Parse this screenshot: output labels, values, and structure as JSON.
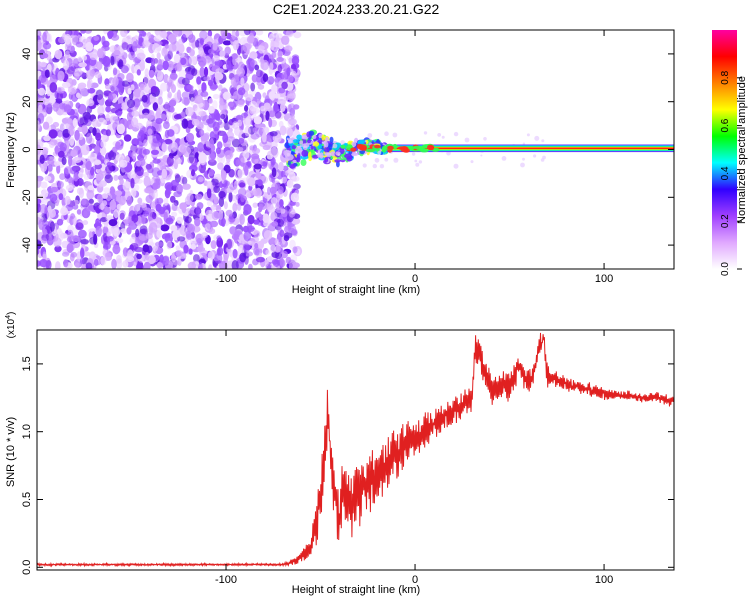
{
  "figure": {
    "title": "C2E1.2024.233.20.21.G22"
  },
  "chart_data": [
    {
      "type": "heatmap",
      "xlabel": "Height of straight line (km)",
      "ylabel": "Frequency (Hz)",
      "xlim": [
        -200,
        137
      ],
      "ylim": [
        -50,
        50
      ],
      "x_ticks": [
        -100,
        0,
        100
      ],
      "x_tick_labels": [
        "-100",
        "0",
        "100"
      ],
      "y_ticks": [
        -40,
        -20,
        0,
        20,
        40
      ],
      "y_tick_labels": [
        "-40",
        "-20",
        "0",
        "20",
        "40"
      ],
      "colorbar": {
        "label": "Normalized spectral amplitude",
        "range": [
          0,
          1
        ],
        "ticks": [
          0,
          0.2,
          0.4,
          0.6,
          0.8
        ],
        "tick_labels": [
          "0.0",
          "0.2",
          "0.4",
          "0.6",
          "0.8"
        ],
        "colors": [
          "#ffffff",
          "#e0a8ff",
          "#a040ff",
          "#3000ff",
          "#00ffff",
          "#00ff00",
          "#ffff00",
          "#ff8000",
          "#ff0000",
          "#ff00a0"
        ]
      },
      "regions": [
        {
          "x_range": [
            -200,
            -68
          ],
          "freq_range": [
            -50,
            50
          ],
          "amplitude": "low (0.0-0.2)",
          "description": "scattered noise"
        },
        {
          "x_range": [
            -68,
            -15
          ],
          "freq_center": 0,
          "freq_spread_hz": 8,
          "amplitude": "0.3-0.8"
        },
        {
          "x_range": [
            -15,
            137
          ],
          "freq_center": 0.5,
          "freq_spread_hz": 1.5,
          "amplitude": "0.8-1.0"
        }
      ],
      "grid": false
    },
    {
      "type": "line",
      "xlabel": "Height of straight line (km)",
      "ylabel": "SNR (10 * v/v)",
      "y_multiplier": "(x10",
      "y_multiplier_exp": "4",
      "y_multiplier_close": ")",
      "xlim": [
        -200,
        137
      ],
      "ylim": [
        -0.02,
        1.75
      ],
      "x_ticks": [
        -100,
        0,
        100
      ],
      "x_tick_labels": [
        "-100",
        "0",
        "100"
      ],
      "y_ticks": [
        0,
        0.5,
        1.0,
        1.5
      ],
      "y_tick_labels": [
        "0.0",
        "0.5",
        "1.0",
        "1.5"
      ],
      "series": [
        {
          "color": "#e02020",
          "x": [
            -200,
            -150,
            -100,
            -70,
            -62,
            -55,
            -50,
            -48,
            -46,
            -44,
            -42,
            -40,
            -38,
            -35,
            -30,
            -25,
            -20,
            -15,
            -10,
            -5,
            0,
            5,
            10,
            15,
            20,
            25,
            30,
            32,
            40,
            50,
            55,
            60,
            68,
            70,
            80,
            90,
            100,
            110,
            120,
            130,
            137
          ],
          "y": [
            0.02,
            0.02,
            0.02,
            0.02,
            0.05,
            0.15,
            0.5,
            0.85,
            1.18,
            0.7,
            0.45,
            0.35,
            0.6,
            0.45,
            0.55,
            0.6,
            0.7,
            0.8,
            0.85,
            0.9,
            0.95,
            1.0,
            1.05,
            1.1,
            1.15,
            1.2,
            1.25,
            1.65,
            1.3,
            1.35,
            1.5,
            1.35,
            1.7,
            1.4,
            1.35,
            1.32,
            1.28,
            1.27,
            1.25,
            1.25,
            1.22
          ],
          "noise": [
            0.01,
            0.01,
            0.01,
            0.01,
            0.04,
            0.12,
            0.3,
            0.3,
            0.25,
            0.3,
            0.3,
            0.28,
            0.28,
            0.28,
            0.28,
            0.28,
            0.28,
            0.26,
            0.25,
            0.23,
            0.2,
            0.16,
            0.14,
            0.14,
            0.14,
            0.14,
            0.14,
            0.14,
            0.14,
            0.13,
            0.13,
            0.12,
            0.12,
            0.1,
            0.07,
            0.06,
            0.06,
            0.05,
            0.05,
            0.05,
            0.05
          ]
        }
      ],
      "grid": false
    }
  ]
}
